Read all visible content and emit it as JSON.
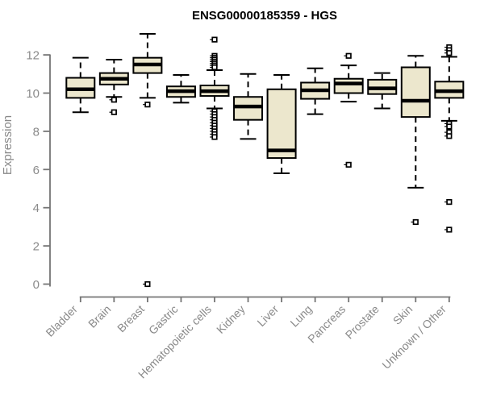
{
  "chart_data": {
    "type": "boxplot",
    "title": "ENSG00000185359 - HGS",
    "ylabel": "Expression",
    "xlabel": "",
    "ylim": [
      0,
      13.1
    ],
    "yticks": [
      0,
      2,
      4,
      6,
      8,
      10,
      12
    ],
    "grid": false,
    "legend": "none",
    "box_fill": "#ECE7CD",
    "box_stroke": "#000000",
    "axis_color": "#757575",
    "label_color": "#8a8a8a",
    "categories": [
      "Bladder",
      "Brain",
      "Breast",
      "Gastric",
      "Hematopoietic cells",
      "Kidney",
      "Liver",
      "Lung",
      "Pancreas",
      "Prostate",
      "Skin",
      "Unknown / Other"
    ],
    "series": [
      {
        "name": "Bladder",
        "whisker_low": 9.0,
        "q1": 9.75,
        "median": 10.2,
        "q3": 10.8,
        "whisker_high": 11.85,
        "outliers": []
      },
      {
        "name": "Brain",
        "whisker_low": 9.8,
        "q1": 10.45,
        "median": 10.75,
        "q3": 11.05,
        "whisker_high": 11.75,
        "outliers": [
          9.65,
          9.0
        ]
      },
      {
        "name": "Breast",
        "whisker_low": 9.75,
        "q1": 11.05,
        "median": 11.5,
        "q3": 11.85,
        "whisker_high": 13.1,
        "outliers": [
          9.4,
          0.0
        ]
      },
      {
        "name": "Gastric",
        "whisker_low": 9.5,
        "q1": 9.8,
        "median": 10.1,
        "q3": 10.35,
        "whisker_high": 10.95,
        "outliers": []
      },
      {
        "name": "Hematopoietic cells",
        "whisker_low": 9.2,
        "q1": 9.85,
        "median": 10.1,
        "q3": 10.4,
        "whisker_high": 11.2,
        "outliers": [
          12.8,
          11.95,
          11.85,
          11.75,
          11.65,
          11.55,
          11.45,
          11.35,
          9.05,
          8.9,
          8.75,
          8.6,
          8.45,
          8.3,
          8.15,
          8.0,
          7.85,
          7.7
        ]
      },
      {
        "name": "Kidney",
        "whisker_low": 7.6,
        "q1": 8.6,
        "median": 9.3,
        "q3": 9.8,
        "whisker_high": 11.0,
        "outliers": []
      },
      {
        "name": "Liver",
        "whisker_low": 5.8,
        "q1": 6.6,
        "median": 7.0,
        "q3": 10.2,
        "whisker_high": 10.95,
        "outliers": []
      },
      {
        "name": "Lung",
        "whisker_low": 8.9,
        "q1": 9.7,
        "median": 10.15,
        "q3": 10.55,
        "whisker_high": 11.3,
        "outliers": []
      },
      {
        "name": "Pancreas",
        "whisker_low": 9.55,
        "q1": 10.0,
        "median": 10.5,
        "q3": 10.75,
        "whisker_high": 11.45,
        "outliers": [
          11.95,
          6.25
        ]
      },
      {
        "name": "Prostate",
        "whisker_low": 9.2,
        "q1": 9.95,
        "median": 10.25,
        "q3": 10.7,
        "whisker_high": 11.05,
        "outliers": []
      },
      {
        "name": "Skin",
        "whisker_low": 5.05,
        "q1": 8.75,
        "median": 9.6,
        "q3": 11.35,
        "whisker_high": 11.95,
        "outliers": [
          3.25
        ]
      },
      {
        "name": "Unknown / Other",
        "whisker_low": 8.55,
        "q1": 9.75,
        "median": 10.1,
        "q3": 10.6,
        "whisker_high": 11.9,
        "outliers": [
          12.4,
          12.25,
          12.1,
          8.4,
          8.25,
          7.95,
          7.75,
          4.3,
          2.85
        ]
      }
    ]
  }
}
